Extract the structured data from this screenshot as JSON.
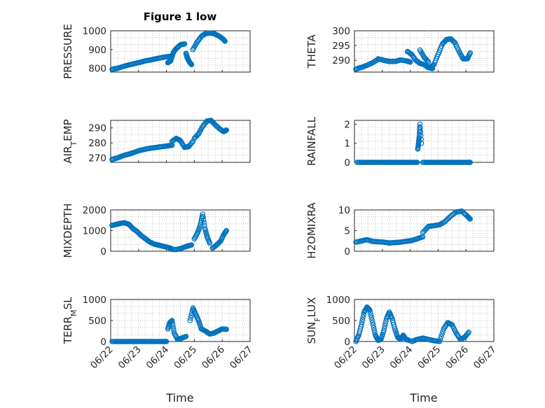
{
  "figure": {
    "title": "Figure 1 low",
    "marker_color": "#0072BD",
    "xlabel": "Time",
    "date_ticks": [
      "06/22",
      "06/23",
      "06/24",
      "06/25",
      "06/26",
      "06/27"
    ],
    "xlim": [
      "2023-06-22",
      "2023-06-27"
    ]
  },
  "chart_data": [
    {
      "type": "scatter",
      "ylabel": "PRESSURE",
      "ylim": [
        780,
        1000
      ],
      "yticks": [
        800,
        900,
        1000
      ],
      "grid": true,
      "segments": [
        {
          "t": [
            0.05,
            0.25,
            0.45,
            0.65,
            0.85,
            1.05,
            1.25,
            1.45,
            1.65,
            1.85,
            2.05,
            2.2
          ],
          "v": [
            795,
            800,
            810,
            818,
            825,
            832,
            840,
            845,
            852,
            858,
            862,
            865
          ]
        },
        {
          "t": [
            2.05,
            2.15,
            2.25,
            2.35,
            2.5,
            2.65
          ],
          "v": [
            830,
            840,
            885,
            905,
            925,
            930
          ]
        },
        {
          "t": [
            2.7,
            2.75,
            2.82,
            2.9
          ],
          "v": [
            880,
            855,
            835,
            820
          ]
        },
        {
          "t": [
            2.95,
            3.1,
            3.25,
            3.4,
            3.55,
            3.7,
            3.85,
            4.0,
            4.1
          ],
          "v": [
            900,
            940,
            970,
            985,
            988,
            985,
            975,
            960,
            945
          ]
        }
      ]
    },
    {
      "type": "scatter",
      "ylabel": "THETA",
      "ylim": [
        286,
        300
      ],
      "yticks": [
        290,
        295,
        300
      ],
      "grid": true,
      "segments": [
        {
          "t": [
            0.05,
            0.25,
            0.45,
            0.65,
            0.85
          ],
          "v": [
            287,
            287.6,
            288.3,
            289.2,
            290.3
          ]
        },
        {
          "t": [
            0.85,
            1.05,
            1.25,
            1.45,
            1.65,
            1.85,
            2.0
          ],
          "v": [
            290.5,
            290,
            289.6,
            289.6,
            290.1,
            289.8,
            289.4
          ]
        },
        {
          "t": [
            1.9,
            2.05,
            2.2,
            2.35,
            2.5,
            2.65,
            2.8
          ],
          "v": [
            293,
            292,
            290,
            289,
            288.5,
            287.5,
            287.2
          ]
        },
        {
          "t": [
            2.35,
            2.5,
            2.65
          ],
          "v": [
            293.5,
            291,
            289.5
          ]
        },
        {
          "t": [
            2.7,
            2.85,
            3.0,
            3.15,
            3.3,
            3.45,
            3.6,
            3.75,
            3.9,
            4.05,
            4.15
          ],
          "v": [
            287.5,
            288.5,
            292,
            295.5,
            297,
            297.3,
            296,
            293,
            290.5,
            290.5,
            292.5
          ]
        }
      ]
    },
    {
      "type": "scatter",
      "ylabel": "AIR_TEMP",
      "ylim": [
        267,
        295
      ],
      "yticks": [
        270,
        280,
        290
      ],
      "grid": true,
      "segments": [
        {
          "t": [
            0.05,
            0.25,
            0.45,
            0.65,
            0.85,
            1.05,
            1.25,
            1.45,
            1.65,
            1.85,
            2.05,
            2.2
          ],
          "v": [
            269,
            270,
            271.5,
            272.5,
            273.7,
            275,
            275.8,
            276.5,
            277,
            277.5,
            278,
            278.5
          ]
        },
        {
          "t": [
            2.2,
            2.35,
            2.5,
            2.65,
            2.8,
            2.95
          ],
          "v": [
            281,
            283,
            281.5,
            277,
            277.5,
            281
          ]
        },
        {
          "t": [
            3.0,
            3.15,
            3.3,
            3.45,
            3.6,
            3.75,
            3.9,
            4.05,
            4.15
          ],
          "v": [
            283,
            286,
            291,
            294.5,
            295,
            292,
            289.5,
            287.5,
            288.5
          ]
        }
      ]
    },
    {
      "type": "scatter",
      "ylabel": "RAINFALL",
      "ylim": [
        0,
        2.2
      ],
      "yticks": [
        0,
        1,
        2
      ],
      "grid": true,
      "segments": [
        {
          "t": [
            0.1,
            0.3,
            0.5,
            0.7,
            0.9,
            1.1,
            1.3,
            1.5,
            1.7,
            1.9,
            2.1,
            2.25
          ],
          "v": [
            0,
            0,
            0,
            0,
            0,
            0,
            0,
            0,
            0,
            0,
            0,
            0
          ]
        },
        {
          "t": [
            2.27,
            2.3,
            2.32,
            2.35,
            2.4
          ],
          "v": [
            0.7,
            1.0,
            1.3,
            2.0,
            1.0
          ]
        },
        {
          "t": [
            2.45,
            2.65,
            2.85,
            3.05,
            3.25,
            3.45,
            3.65,
            3.85,
            4.05,
            4.15
          ],
          "v": [
            0,
            0,
            0,
            0,
            0,
            0,
            0,
            0,
            0,
            0
          ]
        }
      ]
    },
    {
      "type": "scatter",
      "ylabel": "MIXDEPTH",
      "ylim": [
        0,
        2000
      ],
      "yticks": [
        0,
        1000,
        2000
      ],
      "grid": true,
      "segments": [
        {
          "t": [
            0.05,
            0.2,
            0.35,
            0.5,
            0.65,
            0.8,
            0.95,
            1.1,
            1.25,
            1.4,
            1.55,
            1.7,
            1.85,
            2.0,
            2.15
          ],
          "v": [
            1250,
            1300,
            1350,
            1380,
            1300,
            1100,
            950,
            750,
            600,
            450,
            350,
            300,
            250,
            200,
            150
          ]
        },
        {
          "t": [
            2.15,
            2.35,
            2.55,
            2.75,
            2.9
          ],
          "v": [
            100,
            80,
            150,
            250,
            300
          ]
        },
        {
          "t": [
            3.0,
            3.12,
            3.22,
            3.3,
            3.38,
            3.46,
            3.55
          ],
          "v": [
            600,
            900,
            1300,
            1800,
            1100,
            700,
            400
          ]
        },
        {
          "t": [
            3.65,
            3.8,
            3.95,
            4.05,
            4.15
          ],
          "v": [
            150,
            300,
            500,
            800,
            1000
          ]
        }
      ]
    },
    {
      "type": "scatter",
      "ylabel": "H2OMIXRA",
      "ylim": [
        0,
        10
      ],
      "yticks": [
        0,
        5,
        10
      ],
      "grid": true,
      "segments": [
        {
          "t": [
            0.05,
            0.25,
            0.45,
            0.65,
            0.85,
            1.05,
            1.25,
            1.45,
            1.65,
            1.85,
            2.05,
            2.25,
            2.45
          ],
          "v": [
            2.2,
            2.5,
            2.8,
            2.4,
            2.3,
            2.2,
            2.0,
            2.1,
            2.2,
            2.4,
            2.6,
            3.0,
            3.5
          ]
        },
        {
          "t": [
            2.45,
            2.65,
            2.85,
            3.05,
            3.25,
            3.45,
            3.65,
            3.85,
            4.05,
            4.15
          ],
          "v": [
            4.5,
            6.0,
            6.2,
            6.4,
            7.2,
            8.5,
            9.5,
            9.7,
            8.5,
            7.8
          ]
        }
      ]
    },
    {
      "type": "scatter",
      "ylabel": "TERR_MSL",
      "ylim": [
        0,
        1000
      ],
      "yticks": [
        0,
        500,
        1000
      ],
      "grid": true,
      "segments": [
        {
          "t": [
            0.05,
            0.25,
            0.45,
            0.65,
            0.85,
            1.05,
            1.25,
            1.45,
            1.65,
            1.85,
            2.0
          ],
          "v": [
            0,
            0,
            0,
            0,
            0,
            0,
            0,
            0,
            0,
            0,
            0
          ]
        },
        {
          "t": [
            2.05,
            2.12,
            2.2,
            2.28,
            2.4,
            2.55,
            2.7
          ],
          "v": [
            300,
            450,
            500,
            200,
            50,
            80,
            120
          ]
        },
        {
          "t": [
            2.85,
            2.95,
            3.05,
            3.15,
            3.25,
            3.4,
            3.55,
            3.7,
            3.85,
            4.0,
            4.15
          ],
          "v": [
            500,
            800,
            650,
            500,
            300,
            250,
            180,
            200,
            250,
            300,
            290
          ]
        }
      ]
    },
    {
      "type": "scatter",
      "ylabel": "SUN_FLUX",
      "ylim": [
        0,
        1000
      ],
      "yticks": [
        0,
        500,
        1000
      ],
      "grid": true,
      "segments": [
        {
          "t": [
            0.05,
            0.15,
            0.25,
            0.35,
            0.45,
            0.55,
            0.65,
            0.75,
            0.85,
            0.95,
            1.05,
            1.15,
            1.25,
            1.35,
            1.45,
            1.55,
            1.65,
            1.75,
            1.85,
            1.95
          ],
          "v": [
            0,
            150,
            400,
            700,
            820,
            750,
            450,
            150,
            30,
            50,
            250,
            550,
            700,
            550,
            300,
            100,
            50,
            150,
            50,
            30
          ]
        },
        {
          "t": [
            2.05,
            2.25,
            2.45,
            2.65,
            2.85,
            3.05,
            3.2,
            3.35,
            3.5,
            3.65,
            3.8,
            3.95,
            4.1
          ],
          "v": [
            0,
            50,
            80,
            50,
            20,
            0,
            300,
            450,
            400,
            200,
            50,
            100,
            220
          ]
        }
      ]
    }
  ]
}
